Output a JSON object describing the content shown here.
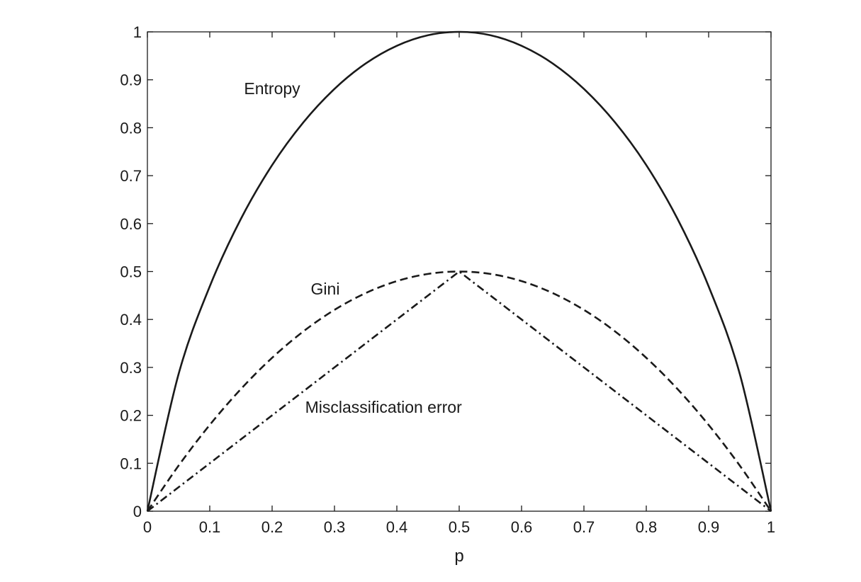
{
  "chart_data": {
    "type": "line",
    "title": "",
    "xlabel": "p",
    "ylabel": "",
    "xlim": [
      0,
      1
    ],
    "ylim": [
      0,
      1
    ],
    "grid": false,
    "legend": "none",
    "x_ticks": [
      "0",
      "0.1",
      "0.2",
      "0.3",
      "0.4",
      "0.5",
      "0.6",
      "0.7",
      "0.8",
      "0.9",
      "1"
    ],
    "y_ticks": [
      "0",
      "0.1",
      "0.2",
      "0.3",
      "0.4",
      "0.5",
      "0.6",
      "0.7",
      "0.8",
      "0.9",
      "1"
    ],
    "x": [
      0,
      0.05,
      0.1,
      0.15,
      0.2,
      0.25,
      0.3,
      0.35,
      0.4,
      0.45,
      0.5,
      0.55,
      0.6,
      0.65,
      0.7,
      0.75,
      0.8,
      0.85,
      0.9,
      0.95,
      1
    ],
    "series": [
      {
        "style": "solid",
        "values": [
          0,
          0.286,
          0.469,
          0.61,
          0.722,
          0.811,
          0.881,
          0.934,
          0.971,
          0.993,
          1.0,
          0.993,
          0.971,
          0.934,
          0.881,
          0.811,
          0.722,
          0.61,
          0.469,
          0.286,
          0
        ]
      },
      {
        "style": "dashed",
        "values": [
          0,
          0.095,
          0.18,
          0.255,
          0.32,
          0.375,
          0.42,
          0.455,
          0.48,
          0.495,
          0.5,
          0.495,
          0.48,
          0.455,
          0.42,
          0.375,
          0.32,
          0.255,
          0.18,
          0.095,
          0
        ]
      },
      {
        "style": "dash-dot",
        "values": [
          0,
          0.05,
          0.1,
          0.15,
          0.2,
          0.25,
          0.3,
          0.35,
          0.4,
          0.45,
          0.5,
          0.45,
          0.4,
          0.35,
          0.3,
          0.25,
          0.2,
          0.15,
          0.1,
          0.05,
          0
        ]
      }
    ],
    "annotations": [
      {
        "text": "Entropy",
        "x": 0.155,
        "y": 0.87
      },
      {
        "text": "Gini",
        "x": 0.262,
        "y": 0.452
      },
      {
        "text": "Misclassification error",
        "x": 0.253,
        "y": 0.205
      }
    ]
  }
}
